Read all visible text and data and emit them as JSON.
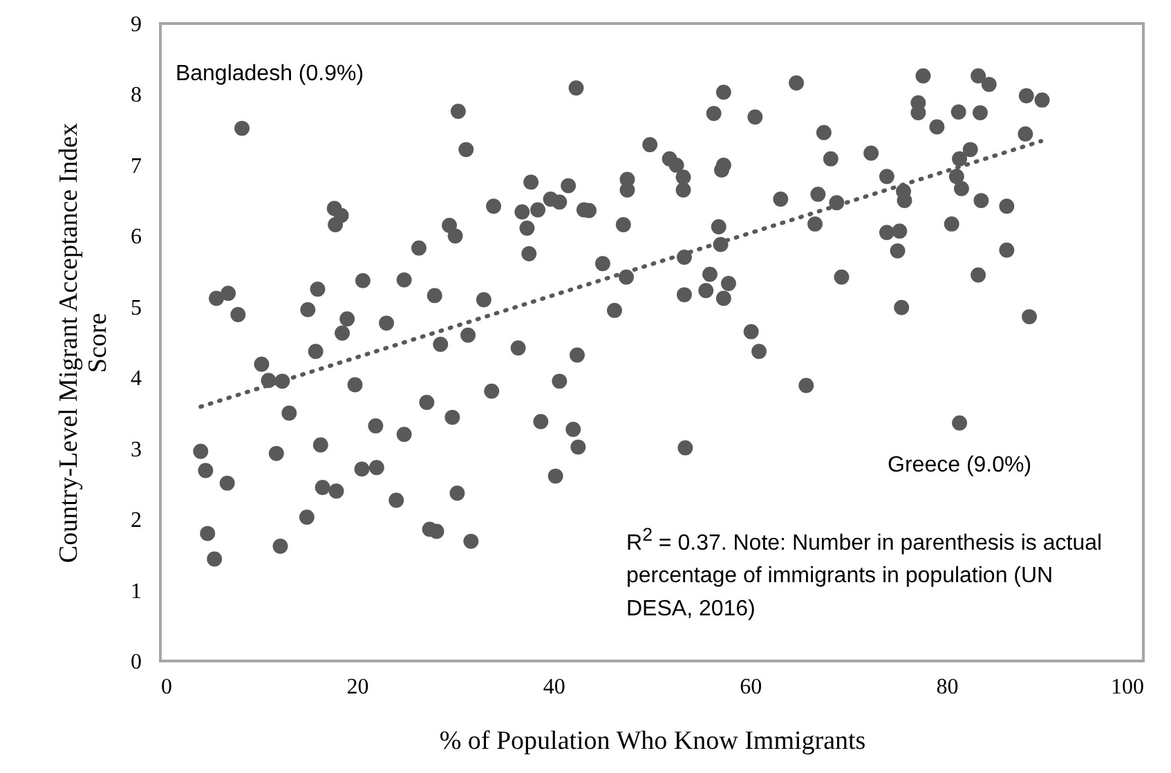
{
  "chart_data": {
    "type": "scatter",
    "xlabel": "% of Population Who Know Immigrants",
    "ylabel": "Country-Level Migrant Acceptance Index Score",
    "xlim": [
      0,
      100
    ],
    "xticks": [
      0,
      20,
      40,
      60,
      80,
      100
    ],
    "ylim": [
      0,
      9
    ],
    "yticks": [
      0,
      1,
      2,
      3,
      4,
      5,
      6,
      7,
      8,
      9
    ],
    "grid": false,
    "marker": "circle",
    "series": [
      {
        "color": "#595959",
        "x": [
          30.3,
          31.1,
          8.3,
          33.9,
          17.7,
          18.4,
          17.8,
          29.4,
          30.0,
          26.3,
          5.7,
          6.9,
          7.9,
          16.0,
          15.0,
          20.6,
          24.8,
          27.9,
          32.9,
          19.0,
          18.5,
          23.0,
          31.3,
          28.5,
          15.8,
          10.3,
          42.3,
          57.3,
          56.3,
          60.5,
          64.7,
          67.5,
          68.2,
          49.8,
          51.8,
          52.5,
          53.2,
          53.2,
          57.3,
          57.1,
          37.7,
          41.5,
          39.7,
          40.6,
          38.4,
          36.8,
          37.3,
          37.5,
          47.5,
          47.5,
          43.1,
          43.6,
          47.1,
          63.1,
          66.9,
          66.6,
          56.8,
          57.0,
          53.3,
          45.0,
          47.4,
          55.9,
          55.5,
          57.8,
          57.3,
          53.3,
          46.2,
          36.4,
          42.4,
          60.1,
          60.9,
          77.6,
          83.2,
          84.3,
          77.1,
          77.1,
          81.2,
          83.4,
          79.0,
          88.1,
          89.7,
          88.0,
          82.4,
          81.3,
          72.3,
          73.9,
          81.0,
          81.5,
          75.6,
          75.7,
          68.8,
          83.5,
          86.1,
          80.5,
          73.9,
          75.2,
          75.0,
          86.1,
          69.3,
          83.2,
          75.4,
          88.4,
          11.0,
          12.4,
          19.8,
          13.1,
          33.7,
          27.1,
          29.7,
          21.9,
          24.8,
          4.1,
          4.6,
          6.8,
          11.8,
          16.3,
          16.5,
          17.9,
          20.5,
          22.0,
          24.0,
          30.2,
          14.9,
          27.4,
          28.1,
          31.6,
          4.8,
          5.5,
          12.2,
          40.6,
          65.7,
          38.7,
          42.0,
          42.5,
          53.4,
          40.2,
          81.3
        ],
        "values": [
          7.76,
          7.22,
          7.52,
          6.42,
          6.39,
          6.29,
          6.16,
          6.15,
          6.0,
          5.83,
          5.12,
          5.19,
          4.89,
          5.25,
          4.96,
          5.37,
          5.38,
          5.16,
          5.1,
          4.83,
          4.63,
          4.77,
          4.6,
          4.47,
          4.37,
          4.19,
          8.09,
          8.03,
          7.73,
          7.68,
          8.16,
          7.46,
          7.09,
          7.29,
          7.09,
          7.0,
          6.83,
          6.65,
          7.0,
          6.93,
          6.76,
          6.71,
          6.52,
          6.48,
          6.37,
          6.34,
          6.11,
          5.75,
          6.8,
          6.65,
          6.37,
          6.36,
          6.16,
          6.52,
          6.59,
          6.17,
          6.13,
          5.88,
          5.7,
          5.61,
          5.42,
          5.46,
          5.23,
          5.33,
          5.12,
          5.17,
          4.95,
          4.42,
          4.32,
          4.65,
          4.37,
          8.26,
          8.26,
          8.14,
          7.88,
          7.74,
          7.75,
          7.74,
          7.54,
          7.98,
          7.92,
          7.44,
          7.22,
          7.09,
          7.17,
          6.84,
          6.84,
          6.67,
          6.63,
          6.5,
          6.47,
          6.5,
          6.42,
          6.17,
          6.05,
          6.07,
          5.79,
          5.8,
          5.42,
          5.45,
          4.99,
          4.86,
          3.96,
          3.95,
          3.9,
          3.5,
          3.81,
          3.65,
          3.44,
          3.32,
          3.2,
          2.96,
          2.69,
          2.51,
          2.93,
          3.05,
          2.45,
          2.4,
          2.71,
          2.73,
          2.27,
          2.37,
          2.03,
          1.86,
          1.83,
          1.69,
          1.8,
          1.44,
          1.62,
          3.95,
          3.89,
          3.38,
          3.27,
          3.02,
          3.01,
          2.61,
          3.36
        ]
      },
      {
        "type": "line",
        "marker": "none",
        "line_style": "dotted",
        "color": "#595959",
        "x": [
          4.1,
          89.6
        ],
        "values": [
          3.59,
          7.34
        ]
      }
    ],
    "annotations": [
      {
        "text": "Bangladesh (0.9%)",
        "x": 8.3,
        "y": 7.52
      },
      {
        "text": "Greece (9.0%)",
        "x": 81.3,
        "y": 3.36
      },
      "R$^{2}$ = 0.37. Note: Number in parenthesis is actual percentage of immigrants in population (UN DESA, 2016)"
    ]
  }
}
